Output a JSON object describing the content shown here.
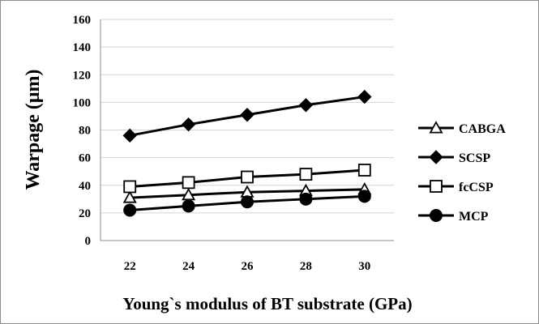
{
  "chart_data": {
    "type": "line",
    "title": "",
    "xlabel": "Young`s modulus of BT substrate (GPa)",
    "ylabel": "Warpage (μm)",
    "x": [
      22,
      24,
      26,
      28,
      30
    ],
    "ylim": [
      0,
      160
    ],
    "yticks": [
      0,
      20,
      40,
      60,
      80,
      100,
      120,
      140,
      160
    ],
    "grid": true,
    "legend_position": "right",
    "series": [
      {
        "name": "CABGA",
        "marker": "open-triangle",
        "values": [
          31,
          33,
          35,
          36,
          37
        ]
      },
      {
        "name": "SCSP",
        "marker": "filled-diamond",
        "values": [
          76,
          84,
          91,
          98,
          104
        ]
      },
      {
        "name": "fcCSP",
        "marker": "open-square",
        "values": [
          39,
          42,
          46,
          48,
          51
        ]
      },
      {
        "name": "MCP",
        "marker": "filled-circle",
        "values": [
          22,
          25,
          28,
          30,
          32
        ]
      }
    ],
    "colors": {
      "line": "#000000",
      "grid": "#d4d4d4",
      "axis": "#8c8c8c"
    }
  }
}
